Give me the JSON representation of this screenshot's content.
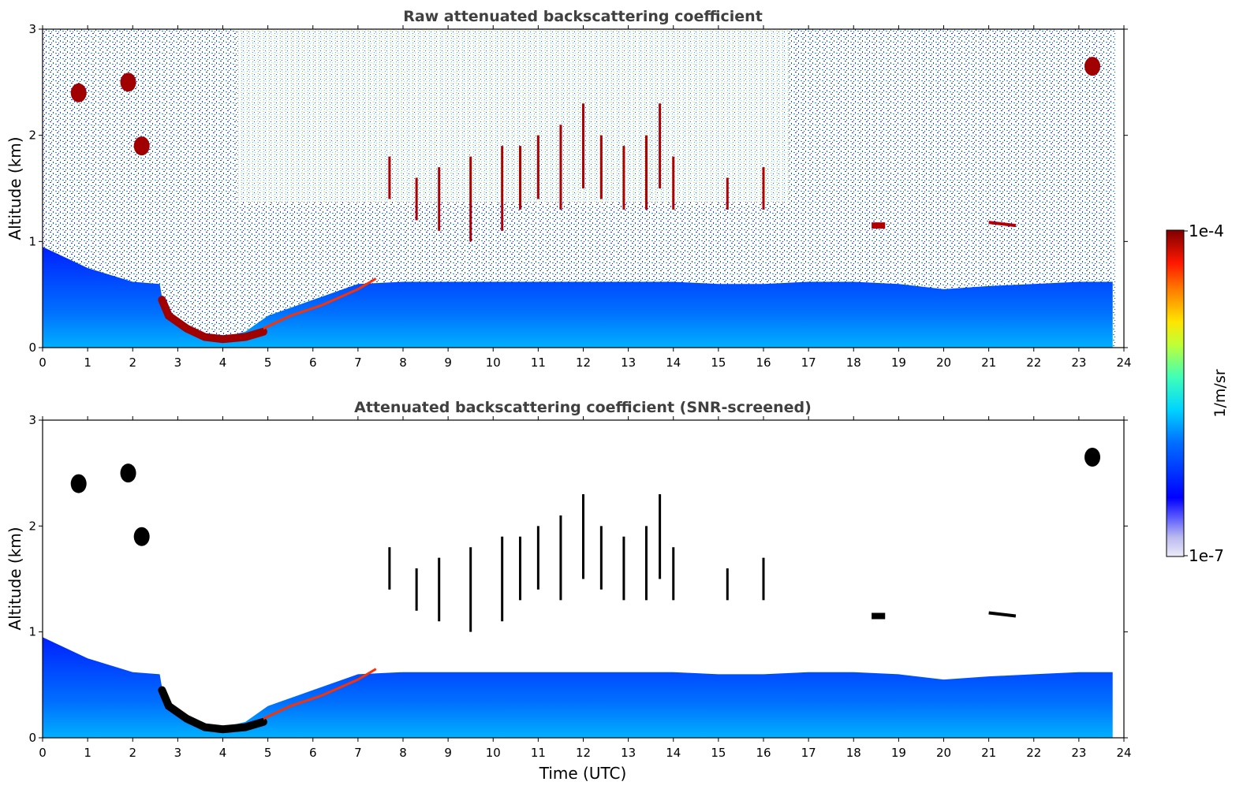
{
  "chart_data": [
    {
      "type": "heatmap",
      "title": "Raw attenuated backscattering coefficient",
      "xlabel": "",
      "ylabel": "Altitude (km)",
      "xlim": [
        0,
        24
      ],
      "ylim": [
        0,
        3
      ],
      "xticks": [
        "0",
        "1",
        "2",
        "3",
        "4",
        "5",
        "6",
        "7",
        "8",
        "9",
        "10",
        "11",
        "12",
        "13",
        "14",
        "15",
        "16",
        "17",
        "18",
        "19",
        "20",
        "21",
        "22",
        "23",
        "24"
      ],
      "yticks": [
        "0",
        "1",
        "2",
        "3"
      ],
      "colorscale": "jet (log)",
      "screened": false
    },
    {
      "type": "heatmap",
      "title": "Attenuated backscattering coefficient (SNR-screened)",
      "xlabel": "Time (UTC)",
      "ylabel": "Altitude (km)",
      "xlim": [
        0,
        24
      ],
      "ylim": [
        0,
        3
      ],
      "xticks": [
        "0",
        "1",
        "2",
        "3",
        "4",
        "5",
        "6",
        "7",
        "8",
        "9",
        "10",
        "11",
        "12",
        "13",
        "14",
        "15",
        "16",
        "17",
        "18",
        "19",
        "20",
        "21",
        "22",
        "23",
        "24"
      ],
      "yticks": [
        "0",
        "1",
        "2",
        "3"
      ],
      "colorscale": "jet (log)",
      "screened": true
    }
  ],
  "colorbar": {
    "label": "1/m/sr",
    "max_label": "1e-4",
    "min_label": "1e-7",
    "scale": "log"
  },
  "features": {
    "boundary_layer_top_km": [
      [
        0.0,
        0.95
      ],
      [
        1.0,
        0.75
      ],
      [
        2.0,
        0.62
      ],
      [
        2.6,
        0.6
      ],
      [
        2.7,
        0.35
      ],
      [
        3.0,
        0.2
      ],
      [
        3.5,
        0.12
      ],
      [
        4.0,
        0.1
      ],
      [
        4.5,
        0.15
      ],
      [
        5.0,
        0.3
      ],
      [
        6.0,
        0.45
      ],
      [
        7.0,
        0.6
      ],
      [
        8.0,
        0.62
      ],
      [
        9.0,
        0.62
      ],
      [
        10.0,
        0.62
      ],
      [
        11.0,
        0.62
      ],
      [
        12.0,
        0.62
      ],
      [
        13.0,
        0.62
      ],
      [
        14.0,
        0.62
      ],
      [
        15.0,
        0.6
      ],
      [
        16.0,
        0.6
      ],
      [
        17.0,
        0.62
      ],
      [
        18.0,
        0.62
      ],
      [
        19.0,
        0.6
      ],
      [
        20.0,
        0.55
      ],
      [
        21.0,
        0.58
      ],
      [
        22.0,
        0.6
      ],
      [
        23.0,
        0.62
      ],
      [
        23.75,
        0.62
      ]
    ],
    "data_end_hour": 23.75,
    "colors": {
      "low": "#0016ff",
      "high": "#7f0000",
      "saturated_screened": "#000000"
    }
  }
}
